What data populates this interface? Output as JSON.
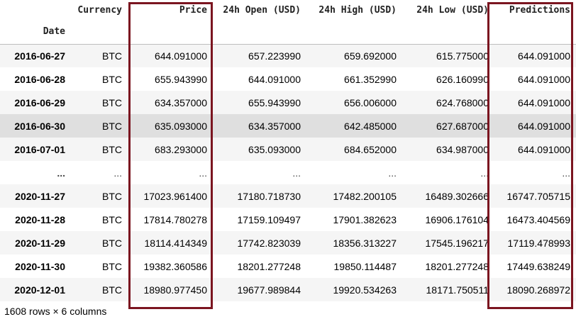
{
  "dataframe": {
    "columns": [
      "Currency",
      "Price",
      "24h Open (USD)",
      "24h High (USD)",
      "24h Low (USD)",
      "Predictions"
    ],
    "index_name": "Date",
    "rows": [
      {
        "date": "2016-06-27",
        "cells": [
          "BTC",
          "644.091000",
          "657.223990",
          "659.692000",
          "615.775000",
          "644.091000"
        ]
      },
      {
        "date": "2016-06-28",
        "cells": [
          "BTC",
          "655.943990",
          "644.091000",
          "661.352990",
          "626.160990",
          "644.091000"
        ]
      },
      {
        "date": "2016-06-29",
        "cells": [
          "BTC",
          "634.357000",
          "655.943990",
          "656.006000",
          "624.768000",
          "644.091000"
        ]
      },
      {
        "date": "2016-06-30",
        "cells": [
          "BTC",
          "635.093000",
          "634.357000",
          "642.485000",
          "627.687000",
          "644.091000"
        ]
      },
      {
        "date": "2016-07-01",
        "cells": [
          "BTC",
          "683.293000",
          "635.093000",
          "684.652000",
          "634.987000",
          "644.091000"
        ]
      },
      {
        "date": "...",
        "cells": [
          "...",
          "...",
          "...",
          "...",
          "...",
          "..."
        ]
      },
      {
        "date": "2020-11-27",
        "cells": [
          "BTC",
          "17023.961400",
          "17180.718730",
          "17482.200105",
          "16489.302666",
          "16747.705715"
        ]
      },
      {
        "date": "2020-11-28",
        "cells": [
          "BTC",
          "17814.780278",
          "17159.109497",
          "17901.382623",
          "16906.176104",
          "16473.404569"
        ]
      },
      {
        "date": "2020-11-29",
        "cells": [
          "BTC",
          "18114.414349",
          "17742.823039",
          "18356.313227",
          "17545.196217",
          "17119.478993"
        ]
      },
      {
        "date": "2020-11-30",
        "cells": [
          "BTC",
          "19382.360586",
          "18201.277248",
          "19850.114487",
          "18201.277248",
          "17449.638249"
        ]
      },
      {
        "date": "2020-12-01",
        "cells": [
          "BTC",
          "18980.977450",
          "19677.989844",
          "19920.534263",
          "18171.750511",
          "18090.268972"
        ]
      }
    ],
    "hovered_row_date": "2016-06-30",
    "footer": "1608 rows × 6 columns"
  },
  "highlight_color": "#7b1520",
  "highlighted_columns": [
    "Price",
    "Predictions"
  ]
}
